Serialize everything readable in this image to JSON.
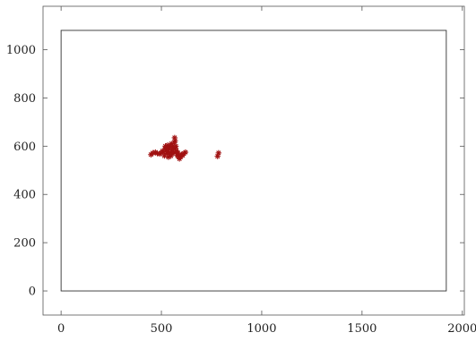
{
  "chart_data": {
    "type": "scatter",
    "title": "",
    "xlabel": "",
    "ylabel": "",
    "xlim": [
      -90,
      2010
    ],
    "ylim": [
      -100,
      1180
    ],
    "xticks": [
      0,
      500,
      1000,
      1500,
      2000
    ],
    "yticks": [
      0,
      200,
      400,
      600,
      800,
      1000
    ],
    "xtick_labels": [
      "0",
      "500",
      "1000",
      "1500",
      "2000"
    ],
    "ytick_labels": [
      "0",
      "200",
      "400",
      "600",
      "800",
      "1000"
    ],
    "grid": false,
    "marker": "star",
    "colors": {
      "points": "#a01010",
      "frame": "#333333",
      "axes": "#555555"
    },
    "reference_rect": {
      "x0": 0,
      "y0": 0,
      "x1": 1920,
      "y1": 1080
    },
    "series": [
      {
        "points": [
          [
            448,
            565
          ],
          [
            458,
            572
          ],
          [
            470,
            575
          ],
          [
            480,
            570
          ],
          [
            492,
            568
          ],
          [
            500,
            572
          ],
          [
            505,
            580
          ],
          [
            510,
            575
          ],
          [
            515,
            560
          ],
          [
            518,
            590
          ],
          [
            520,
            600
          ],
          [
            522,
            585
          ],
          [
            525,
            595
          ],
          [
            528,
            570
          ],
          [
            530,
            578
          ],
          [
            532,
            604
          ],
          [
            535,
            555
          ],
          [
            538,
            590
          ],
          [
            540,
            565
          ],
          [
            542,
            598
          ],
          [
            545,
            575
          ],
          [
            548,
            560
          ],
          [
            550,
            610
          ],
          [
            552,
            585
          ],
          [
            555,
            570
          ],
          [
            558,
            600
          ],
          [
            560,
            592
          ],
          [
            562,
            575
          ],
          [
            565,
            615
          ],
          [
            566,
            635
          ],
          [
            568,
            622
          ],
          [
            570,
            590
          ],
          [
            572,
            600
          ],
          [
            575,
            580
          ],
          [
            578,
            568
          ],
          [
            580,
            560
          ],
          [
            583,
            572
          ],
          [
            586,
            558
          ],
          [
            590,
            548
          ],
          [
            595,
            555
          ],
          [
            600,
            565
          ],
          [
            606,
            562
          ],
          [
            612,
            570
          ],
          [
            620,
            575
          ],
          [
            780,
            558
          ],
          [
            785,
            572
          ]
        ]
      }
    ]
  }
}
